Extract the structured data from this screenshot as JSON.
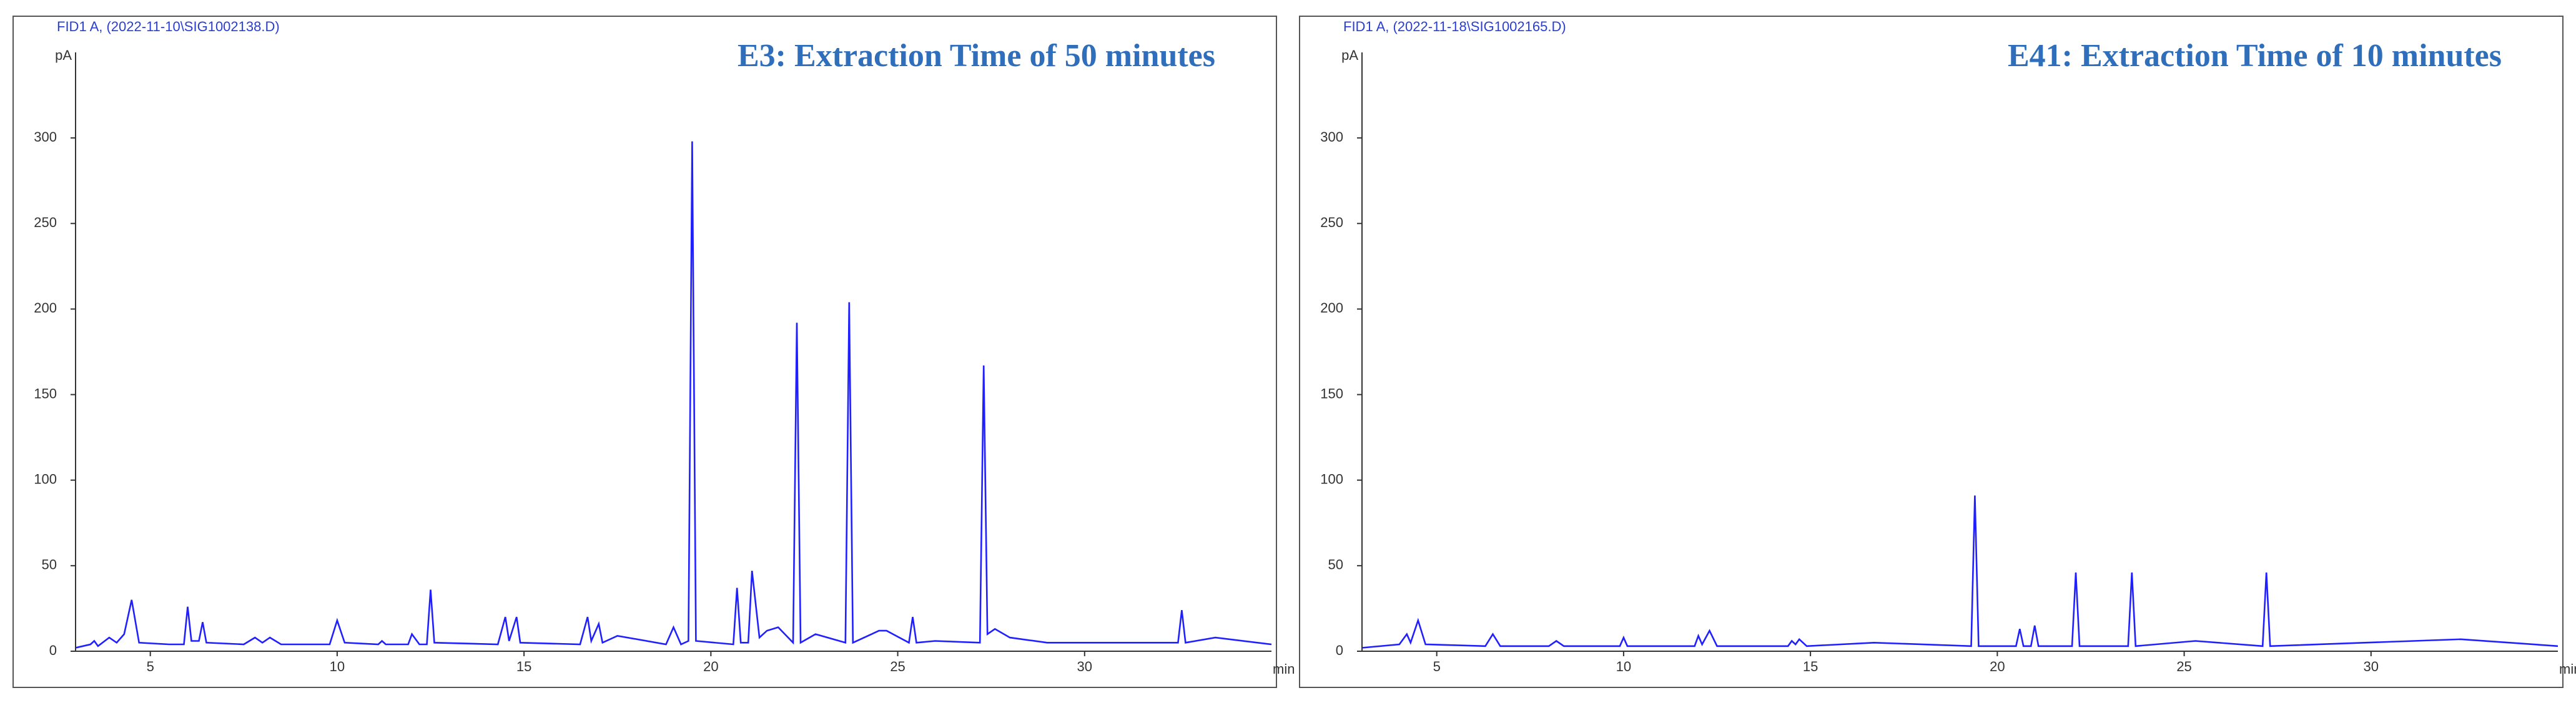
{
  "chart_data": [
    {
      "type": "line",
      "header": "FID1 A, (2022-11-10\\SIG1002138.D)",
      "title": "E3: Extraction Time of 50 minutes",
      "y_unit": "pA",
      "x_unit": "min",
      "color": "#1f1fff",
      "xlim": [
        3,
        35
      ],
      "xticks": [
        5,
        10,
        15,
        20,
        25,
        30
      ],
      "ylim": [
        0,
        350
      ],
      "yticks": [
        0,
        50,
        100,
        150,
        200,
        250,
        300
      ],
      "x": [
        3,
        3.4,
        3.5,
        3.6,
        3.9,
        4.1,
        4.3,
        4.5,
        4.7,
        5.5,
        5.9,
        6.0,
        6.1,
        6.3,
        6.4,
        6.5,
        7.5,
        7.8,
        8.0,
        8.2,
        8.5,
        9.8,
        10.0,
        10.2,
        11.1,
        11.2,
        11.3,
        11.9,
        12.0,
        12.2,
        12.4,
        12.5,
        12.6,
        14.3,
        14.5,
        14.6,
        14.8,
        14.9,
        16.5,
        16.7,
        16.8,
        17.0,
        17.1,
        17.5,
        18.8,
        19.0,
        19.2,
        19.4,
        19.5,
        19.6,
        20.6,
        20.7,
        20.8,
        21.0,
        21.1,
        21.3,
        21.5,
        21.8,
        22.2,
        22.3,
        22.4,
        22.8,
        23.6,
        23.7,
        23.8,
        24.5,
        24.7,
        25.3,
        25.4,
        25.5,
        26,
        27.2,
        27.3,
        27.4,
        27.6,
        28,
        29,
        32.5,
        32.6,
        32.7,
        33.5,
        35
      ],
      "values": [
        2,
        4,
        6,
        3,
        8,
        5,
        10,
        30,
        5,
        4,
        4,
        26,
        6,
        6,
        17,
        5,
        4,
        8,
        5,
        8,
        4,
        4,
        18,
        5,
        4,
        6,
        4,
        4,
        10,
        4,
        4,
        36,
        5,
        4,
        20,
        6,
        20,
        5,
        4,
        20,
        6,
        16,
        5,
        9,
        4,
        14,
        4,
        6,
        298,
        6,
        4,
        37,
        5,
        5,
        47,
        8,
        12,
        14,
        5,
        192,
        5,
        10,
        5,
        204,
        5,
        12,
        12,
        5,
        20,
        5,
        6,
        5,
        167,
        10,
        13,
        8,
        5,
        5,
        24,
        5,
        8,
        4
      ]
    },
    {
      "type": "line",
      "header": "FID1 A, (2022-11-18\\SIG1002165.D)",
      "title": "E41: Extraction Time of 10 minutes",
      "y_unit": "pA",
      "x_unit": "min",
      "color": "#1f1fff",
      "xlim": [
        3,
        35
      ],
      "xticks": [
        5,
        10,
        15,
        20,
        25,
        30
      ],
      "ylim": [
        0,
        350
      ],
      "yticks": [
        0,
        50,
        100,
        150,
        200,
        250,
        300
      ],
      "x": [
        3,
        4.0,
        4.2,
        4.3,
        4.5,
        4.7,
        6.3,
        6.5,
        6.7,
        8.0,
        8.2,
        8.4,
        9.9,
        10.0,
        10.1,
        11.9,
        12.0,
        12.1,
        12.3,
        12.5,
        14.4,
        14.5,
        14.6,
        14.7,
        14.9,
        16.7,
        19.3,
        19.4,
        19.5,
        20.5,
        20.6,
        20.7,
        20.9,
        21.0,
        21.1,
        22.0,
        22.1,
        22.2,
        23.5,
        23.6,
        23.7,
        25.3,
        27.1,
        27.2,
        27.3,
        32.4,
        35
      ],
      "values": [
        2,
        4,
        10,
        5,
        18,
        4,
        3,
        10,
        3,
        3,
        6,
        3,
        3,
        8,
        3,
        3,
        9,
        4,
        12,
        3,
        3,
        6,
        4,
        7,
        3,
        5,
        3,
        91,
        3,
        3,
        13,
        3,
        3,
        15,
        3,
        3,
        46,
        3,
        3,
        46,
        3,
        6,
        3,
        46,
        3,
        7,
        3
      ]
    }
  ]
}
